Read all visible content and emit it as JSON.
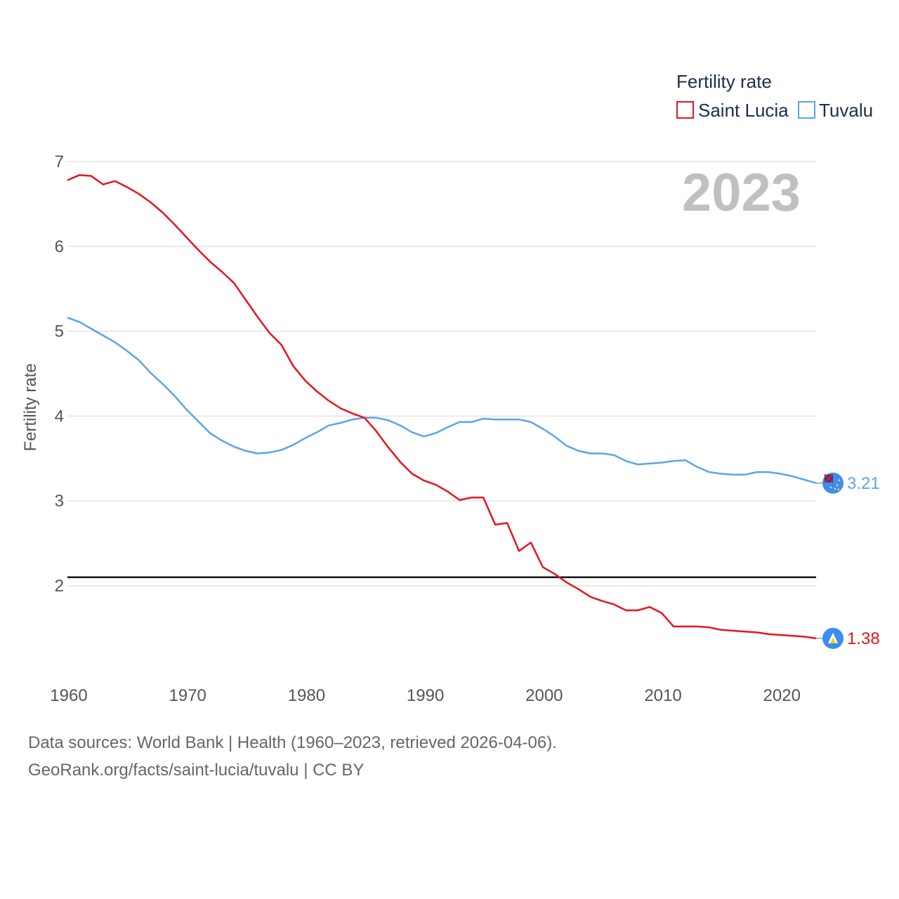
{
  "chart_data": {
    "type": "line",
    "legend_title": "Fertility rate",
    "year_label": "2023",
    "ylabel": "Fertility rate",
    "xlabel": "",
    "xlim": [
      1960,
      2023
    ],
    "ylim": [
      1,
      7
    ],
    "x_ticks": [
      1960,
      1970,
      1980,
      1990,
      2000,
      2010,
      2020
    ],
    "y_ticks": [
      2,
      3,
      4,
      5,
      6,
      7
    ],
    "reference_line": 2.1,
    "x": [
      1960,
      1961,
      1962,
      1963,
      1964,
      1965,
      1966,
      1967,
      1968,
      1969,
      1970,
      1971,
      1972,
      1973,
      1974,
      1975,
      1976,
      1977,
      1978,
      1979,
      1980,
      1981,
      1982,
      1983,
      1984,
      1985,
      1986,
      1987,
      1988,
      1989,
      1990,
      1991,
      1992,
      1993,
      1994,
      1995,
      1996,
      1997,
      1998,
      1999,
      2000,
      2001,
      2002,
      2003,
      2004,
      2005,
      2006,
      2007,
      2008,
      2009,
      2010,
      2011,
      2012,
      2013,
      2014,
      2015,
      2016,
      2017,
      2018,
      2019,
      2020,
      2021,
      2022,
      2023
    ],
    "series": [
      {
        "name": "Saint Lucia",
        "color": "#e8141e",
        "end_label": "1.38",
        "values": [
          6.78,
          6.84,
          6.83,
          6.73,
          6.77,
          6.7,
          6.62,
          6.52,
          6.4,
          6.26,
          6.11,
          5.96,
          5.82,
          5.7,
          5.57,
          5.37,
          5.17,
          4.98,
          4.84,
          4.59,
          4.42,
          4.29,
          4.18,
          4.09,
          4.03,
          3.98,
          3.82,
          3.63,
          3.46,
          3.32,
          3.24,
          3.19,
          3.11,
          3.01,
          3.04,
          3.04,
          2.72,
          2.74,
          2.41,
          2.51,
          2.22,
          2.14,
          2.04,
          1.96,
          1.87,
          1.82,
          1.78,
          1.71,
          1.71,
          1.75,
          1.68,
          1.52,
          1.52,
          1.52,
          1.51,
          1.48,
          1.47,
          1.46,
          1.45,
          1.43,
          1.42,
          1.41,
          1.4,
          1.38
        ]
      },
      {
        "name": "Tuvalu",
        "color": "#5aa5e6",
        "end_label": "3.21",
        "values": [
          5.16,
          5.11,
          5.03,
          4.95,
          4.87,
          4.77,
          4.66,
          4.51,
          4.38,
          4.24,
          4.08,
          3.94,
          3.8,
          3.71,
          3.64,
          3.59,
          3.56,
          3.57,
          3.6,
          3.66,
          3.74,
          3.81,
          3.89,
          3.92,
          3.96,
          3.98,
          3.98,
          3.95,
          3.89,
          3.81,
          3.76,
          3.8,
          3.87,
          3.93,
          3.93,
          3.97,
          3.96,
          3.96,
          3.96,
          3.93,
          3.85,
          3.76,
          3.65,
          3.59,
          3.56,
          3.56,
          3.54,
          3.47,
          3.43,
          3.44,
          3.45,
          3.47,
          3.48,
          3.4,
          3.34,
          3.32,
          3.31,
          3.31,
          3.34,
          3.34,
          3.32,
          3.29,
          3.25,
          3.21
        ]
      }
    ]
  },
  "footer": {
    "line1": "Data sources: World Bank | Health (1960–2023, retrieved 2026-04-06).",
    "line2": "GeoRank.org/facts/saint-lucia/tuvalu | CC BY"
  }
}
